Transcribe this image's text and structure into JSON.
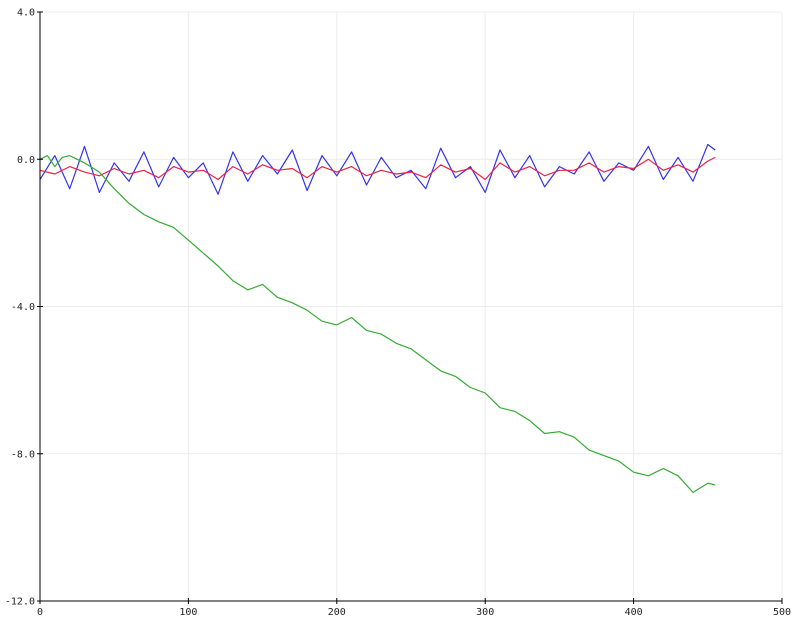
{
  "chart_data": {
    "type": "line",
    "title": "",
    "xlabel": "",
    "ylabel": "",
    "xlim": [
      0,
      500
    ],
    "ylim": [
      -12,
      4
    ],
    "x_ticks": [
      0,
      100,
      200,
      300,
      400,
      500
    ],
    "x_tick_labels": [
      "0",
      "100",
      "200",
      "300",
      "400",
      "500"
    ],
    "y_ticks": [
      4,
      0,
      -4,
      -8,
      -12
    ],
    "y_tick_labels": [
      "4.0",
      "0.0",
      "-4.0",
      "-8.0",
      "-12.0"
    ],
    "grid": true,
    "legend": "none",
    "series": [
      {
        "color": "#3333ee",
        "style": "noisy-signal",
        "x": [
          0,
          10,
          20,
          30,
          40,
          50,
          60,
          70,
          80,
          90,
          100,
          110,
          120,
          130,
          140,
          150,
          160,
          170,
          180,
          190,
          200,
          210,
          220,
          230,
          240,
          250,
          260,
          270,
          280,
          290,
          300,
          310,
          320,
          330,
          340,
          350,
          360,
          370,
          380,
          390,
          400,
          410,
          420,
          430,
          440,
          450,
          455
        ],
        "y": [
          -0.55,
          0.1,
          -0.8,
          0.35,
          -0.9,
          -0.1,
          -0.6,
          0.2,
          -0.75,
          0.05,
          -0.5,
          -0.1,
          -0.95,
          0.2,
          -0.6,
          0.1,
          -0.4,
          0.25,
          -0.85,
          0.1,
          -0.45,
          0.2,
          -0.7,
          0.05,
          -0.5,
          -0.3,
          -0.8,
          0.3,
          -0.5,
          -0.2,
          -0.9,
          0.25,
          -0.5,
          0.1,
          -0.75,
          -0.2,
          -0.4,
          0.2,
          -0.6,
          -0.1,
          -0.3,
          0.35,
          -0.55,
          0.05,
          -0.6,
          0.4,
          0.25
        ]
      },
      {
        "color": "#ee2244",
        "style": "smoothed",
        "x": [
          0,
          10,
          20,
          30,
          40,
          50,
          60,
          70,
          80,
          90,
          100,
          110,
          120,
          130,
          140,
          150,
          160,
          170,
          180,
          190,
          200,
          210,
          220,
          230,
          240,
          250,
          260,
          270,
          280,
          290,
          300,
          310,
          320,
          330,
          340,
          350,
          360,
          370,
          380,
          390,
          400,
          410,
          420,
          430,
          440,
          450,
          455
        ],
        "y": [
          -0.3,
          -0.4,
          -0.2,
          -0.35,
          -0.45,
          -0.25,
          -0.4,
          -0.3,
          -0.5,
          -0.2,
          -0.35,
          -0.3,
          -0.55,
          -0.2,
          -0.4,
          -0.15,
          -0.3,
          -0.25,
          -0.5,
          -0.2,
          -0.35,
          -0.2,
          -0.45,
          -0.3,
          -0.4,
          -0.35,
          -0.5,
          -0.15,
          -0.35,
          -0.25,
          -0.55,
          -0.1,
          -0.35,
          -0.2,
          -0.45,
          -0.3,
          -0.3,
          -0.1,
          -0.35,
          -0.2,
          -0.25,
          0.0,
          -0.3,
          -0.15,
          -0.35,
          -0.05,
          0.05
        ]
      },
      {
        "color": "#33aa33",
        "style": "trend",
        "x": [
          0,
          5,
          10,
          15,
          20,
          25,
          30,
          40,
          50,
          60,
          70,
          80,
          90,
          100,
          110,
          120,
          130,
          140,
          150,
          160,
          170,
          180,
          190,
          200,
          210,
          220,
          230,
          240,
          250,
          260,
          270,
          280,
          290,
          300,
          310,
          320,
          330,
          340,
          350,
          360,
          370,
          380,
          390,
          400,
          410,
          420,
          430,
          440,
          450,
          455
        ],
        "y": [
          0.0,
          0.1,
          -0.2,
          0.05,
          0.1,
          0.0,
          -0.1,
          -0.35,
          -0.8,
          -1.2,
          -1.5,
          -1.7,
          -1.85,
          -2.2,
          -2.55,
          -2.9,
          -3.3,
          -3.55,
          -3.4,
          -3.75,
          -3.9,
          -4.1,
          -4.4,
          -4.5,
          -4.3,
          -4.65,
          -4.75,
          -5.0,
          -5.15,
          -5.45,
          -5.75,
          -5.9,
          -6.2,
          -6.35,
          -6.75,
          -6.85,
          -7.1,
          -7.45,
          -7.4,
          -7.55,
          -7.9,
          -8.05,
          -8.2,
          -8.5,
          -8.6,
          -8.4,
          -8.6,
          -9.05,
          -8.8,
          -8.85
        ]
      }
    ]
  }
}
